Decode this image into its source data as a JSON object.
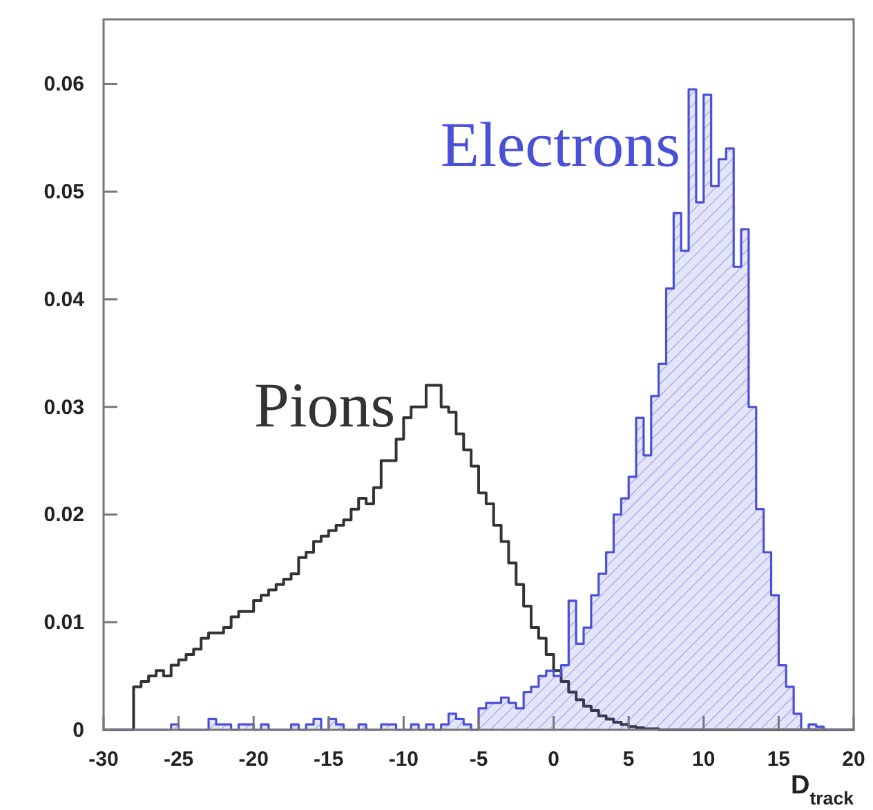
{
  "chart_data": {
    "type": "step",
    "xlabel": "D$_{track}$",
    "xlim": [
      -30,
      20
    ],
    "ylim": [
      0,
      0.066
    ],
    "xticks": [
      -30,
      -25,
      -20,
      -15,
      -10,
      -5,
      0,
      5,
      10,
      15,
      20
    ],
    "yticks": [
      0,
      0.01,
      0.02,
      0.03,
      0.04,
      0.05,
      0.06
    ],
    "x": [
      -30,
      -29.5,
      -29,
      -28.5,
      -28,
      -27.5,
      -27,
      -26.5,
      -26,
      -25.5,
      -25,
      -24.5,
      -24,
      -23.5,
      -23,
      -22.5,
      -22,
      -21.5,
      -21,
      -20.5,
      -20,
      -19.5,
      -19,
      -18.5,
      -18,
      -17.5,
      -17,
      -16.5,
      -16,
      -15.5,
      -15,
      -14.5,
      -14,
      -13.5,
      -13,
      -12.5,
      -12,
      -11.5,
      -11,
      -10.5,
      -10,
      -9.5,
      -9,
      -8.5,
      -8,
      -7.5,
      -7,
      -6.5,
      -6,
      -5.5,
      -5,
      -4.5,
      -4,
      -3.5,
      -3,
      -2.5,
      -2,
      -1.5,
      -1,
      -0.5,
      0,
      0.5,
      1,
      1.5,
      2,
      2.5,
      3,
      3.5,
      4,
      4.5,
      5,
      5.5,
      6,
      6.5,
      7,
      7.5,
      8,
      8.5,
      9,
      9.5,
      10,
      10.5,
      11,
      11.5,
      12,
      12.5,
      13,
      13.5,
      14,
      14.5,
      15,
      15.5,
      16,
      16.5,
      17,
      17.5,
      18,
      18.5,
      19,
      19.5,
      20
    ],
    "series": [
      {
        "name": "Pions",
        "color": "#333333",
        "values": [
          0,
          0,
          0,
          0,
          0.004,
          0.0045,
          0.005,
          0.0055,
          0.005,
          0.006,
          0.0065,
          0.007,
          0.0075,
          0.0085,
          0.009,
          0.009,
          0.0095,
          0.0105,
          0.011,
          0.011,
          0.012,
          0.0125,
          0.013,
          0.0135,
          0.014,
          0.0145,
          0.016,
          0.0165,
          0.0175,
          0.018,
          0.0185,
          0.019,
          0.0195,
          0.0205,
          0.0215,
          0.021,
          0.0225,
          0.025,
          0.025,
          0.027,
          0.029,
          0.03,
          0.03,
          0.032,
          0.032,
          0.03,
          0.0295,
          0.0275,
          0.026,
          0.0245,
          0.022,
          0.021,
          0.019,
          0.0175,
          0.0155,
          0.0135,
          0.0115,
          0.0095,
          0.0085,
          0.007,
          0.0055,
          0.0045,
          0.0035,
          0.0028,
          0.0022,
          0.0018,
          0.0013,
          0.001,
          0.0007,
          0.0005,
          0.0003,
          0.0002,
          0.0001,
          0.0001,
          0,
          0,
          0,
          0,
          0,
          0,
          0,
          0,
          0,
          0,
          0,
          0,
          0,
          0,
          0,
          0,
          0,
          0,
          0,
          0,
          0,
          0,
          0,
          0,
          0,
          0,
          0
        ]
      },
      {
        "name": "Electrons",
        "type": "area",
        "color": "#4a50d8",
        "values": [
          0,
          0,
          0,
          0,
          0,
          0,
          0,
          0,
          0,
          0.0005,
          0,
          0,
          0,
          0,
          0.001,
          0.0005,
          0.0005,
          0,
          0.0005,
          0.0005,
          0,
          0.0005,
          0,
          0,
          0,
          0.0005,
          0,
          0.0005,
          0.001,
          0,
          0.001,
          0.0005,
          0,
          0,
          0.0005,
          0,
          0,
          0.0005,
          0.0005,
          0,
          0,
          0.0005,
          0,
          0.0005,
          0,
          0.0005,
          0.0015,
          0.001,
          0.0005,
          0,
          0.002,
          0.0025,
          0.0025,
          0.003,
          0.0025,
          0.002,
          0.0035,
          0.004,
          0.005,
          0.0055,
          0.005,
          0.006,
          0.012,
          0.008,
          0.0095,
          0.0125,
          0.0145,
          0.0165,
          0.02,
          0.0215,
          0.0235,
          0.029,
          0.0255,
          0.031,
          0.034,
          0.041,
          0.048,
          0.0445,
          0.0595,
          0.049,
          0.059,
          0.0505,
          0.053,
          0.054,
          0.043,
          0.0465,
          0.03,
          0.0205,
          0.0165,
          0.0125,
          0.006,
          0.004,
          0.0015,
          0,
          0.0005,
          0.0003,
          0,
          0,
          0,
          0,
          0
        ]
      }
    ]
  }
}
